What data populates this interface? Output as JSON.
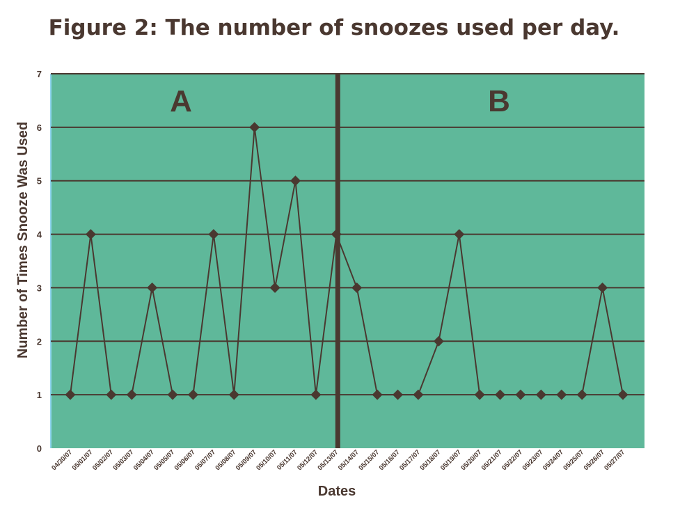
{
  "chart_data": {
    "type": "line",
    "title": "Figure 2: The number of snoozes used per day.",
    "xlabel": "Dates",
    "ylabel": "Number of Times Snooze Was Used",
    "ylim": [
      0,
      7
    ],
    "yticks": [
      0,
      1,
      2,
      3,
      4,
      5,
      6,
      7
    ],
    "grid": true,
    "marker": "diamond",
    "categories": [
      "04/30/07",
      "05/01/07",
      "05/02/07",
      "05/03/07",
      "05/04/07",
      "05/05/07",
      "05/06/07",
      "05/07/07",
      "05/08/07",
      "05/09/07",
      "05/10/07",
      "05/11/07",
      "05/12/07",
      "05/13/07",
      "05/14/07",
      "05/15/07",
      "05/16/07",
      "05/17/07",
      "05/18/07",
      "05/19/07",
      "05/20/07",
      "05/21/07",
      "05/22/07",
      "05/23/07",
      "05/24/07",
      "05/25/07",
      "05/26/07",
      "05/27/07"
    ],
    "values": [
      1,
      4,
      1,
      1,
      3,
      1,
      1,
      4,
      1,
      6,
      3,
      5,
      1,
      4,
      3,
      1,
      1,
      1,
      2,
      4,
      1,
      1,
      1,
      1,
      1,
      1,
      3,
      1
    ],
    "phases": [
      {
        "label": "A",
        "from": "04/30/07",
        "to": "05/13/07"
      },
      {
        "label": "B",
        "from": "05/14/07",
        "to": "05/27/07"
      }
    ],
    "phase_divider_after": "05/13/07",
    "colors": {
      "plot_bg": "#5fb89a",
      "line": "#4a3830",
      "text": "#4a3830",
      "edge": "#8fd4ee"
    }
  }
}
